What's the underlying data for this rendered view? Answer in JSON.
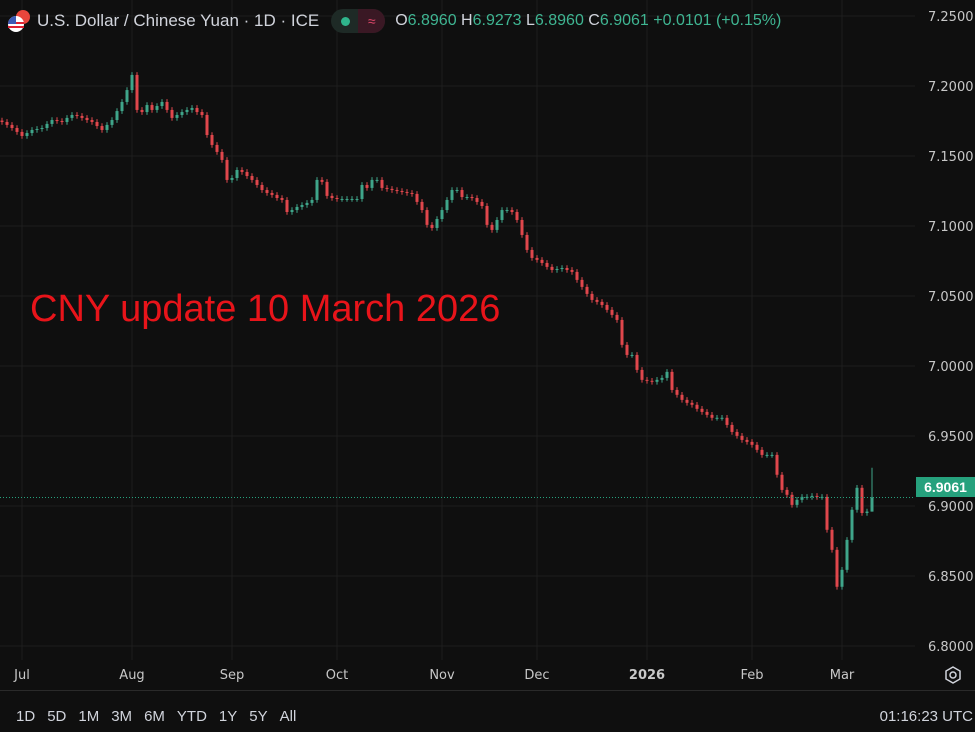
{
  "header": {
    "title": "U.S. Dollar / Chinese Yuan · 1D · ICE",
    "flag_icon": "us-cn-flag-icon",
    "status_pill": {
      "market_open_icon": "green-dot-icon",
      "delayed_icon": "approx-icon",
      "delayed_glyph": "≈"
    },
    "ohlc": {
      "o_label": "O",
      "o": "6.8960",
      "h_label": "H",
      "h": "6.9273",
      "l_label": "L",
      "l": "6.8960",
      "c_label": "C",
      "c": "6.9061",
      "change": "+0.0101 (+0.15%)"
    }
  },
  "annotation": "CNY update 10 March 2026",
  "last_price_label": "6.9061",
  "bottom_bar": {
    "ranges": [
      "1D",
      "5D",
      "1M",
      "3M",
      "6M",
      "YTD",
      "1Y",
      "5Y",
      "All"
    ],
    "clock": "01:16:23 UTC",
    "settings_icon": "gear-icon"
  },
  "colors": {
    "up": "#3fa58a",
    "down": "#e0474c",
    "background": "#0f0f0f",
    "annotation": "#e8141a",
    "last_price": "#26a17d"
  },
  "chart_data": {
    "type": "candlestick",
    "title": "U.S. Dollar / Chinese Yuan · 1D · ICE",
    "interval": "1D",
    "ylim": [
      6.78,
      7.26
    ],
    "y_ticks": [
      "7.2500",
      "7.2000",
      "7.1500",
      "7.1000",
      "7.0500",
      "7.0000",
      "6.9500",
      "6.9000",
      "6.8500",
      "6.8000"
    ],
    "x_ticks": [
      {
        "label": "Jul",
        "at_index": 4
      },
      {
        "label": "Aug",
        "at_index": 26
      },
      {
        "label": "Sep",
        "at_index": 46
      },
      {
        "label": "Oct",
        "at_index": 67
      },
      {
        "label": "Nov",
        "at_index": 88
      },
      {
        "label": "Dec",
        "at_index": 107
      },
      {
        "label": "2026",
        "at_index": 129
      },
      {
        "label": "Feb",
        "at_index": 150
      },
      {
        "label": "Mar",
        "at_index": 168
      }
    ],
    "grid": true,
    "last_price": 6.9061,
    "last_candle": {
      "open": 6.896,
      "high": 6.9273,
      "low": 6.896,
      "close": 6.9061
    },
    "closes": [
      7.1743,
      7.1722,
      7.17,
      7.1672,
      7.1643,
      7.1664,
      7.1686,
      7.1693,
      7.17,
      7.1729,
      7.1757,
      7.175,
      7.1743,
      7.1772,
      7.1793,
      7.1786,
      7.1772,
      7.1757,
      7.1743,
      7.1714,
      7.1686,
      7.1722,
      7.1757,
      7.1821,
      7.1886,
      7.1971,
      7.2079,
      7.1829,
      7.1814,
      7.1864,
      7.1829,
      7.1857,
      7.1886,
      7.1829,
      7.1772,
      7.1793,
      7.1814,
      7.1829,
      7.1843,
      7.1814,
      7.1793,
      7.165,
      7.1579,
      7.1529,
      7.1472,
      7.1329,
      7.1343,
      7.14,
      7.1386,
      7.1357,
      7.1329,
      7.1293,
      7.1257,
      7.1236,
      7.1222,
      7.12,
      7.1186,
      7.11,
      7.1114,
      7.1136,
      7.115,
      7.1165,
      7.1186,
      7.1329,
      7.1315,
      7.1215,
      7.12,
      7.1193,
      7.1193,
      7.1193,
      7.1193,
      7.1193,
      7.1293,
      7.1272,
      7.1329,
      7.1329,
      7.1272,
      7.1265,
      7.1257,
      7.125,
      7.1243,
      7.1236,
      7.1229,
      7.1172,
      7.1114,
      7.1008,
      7.0986,
      7.105,
      7.1114,
      7.1186,
      7.1257,
      7.1257,
      7.1207,
      7.1207,
      7.12,
      7.1172,
      7.1143,
      7.1008,
      7.0972,
      7.1043,
      7.1114,
      7.1114,
      7.11,
      7.1043,
      7.0936,
      7.0829,
      7.0772,
      7.0758,
      7.0736,
      7.0708,
      7.0686,
      7.0693,
      7.07,
      7.0686,
      7.0672,
      7.0615,
      7.0565,
      7.0515,
      7.0472,
      7.0458,
      7.0436,
      7.0401,
      7.0365,
      7.0329,
      7.0151,
      7.0079,
      7.0079,
      6.9972,
      6.9901,
      6.9894,
      6.9887,
      6.9901,
      6.9915,
      6.9958,
      6.9829,
      6.9794,
      6.9758,
      6.9737,
      6.9723,
      6.9694,
      6.9672,
      6.9651,
      6.963,
      6.963,
      6.963,
      6.9579,
      6.9529,
      6.9501,
      6.9472,
      6.9458,
      6.9437,
      6.9401,
      6.9365,
      6.9365,
      6.9365,
      6.9223,
      6.9115,
      6.908,
      6.9008,
      6.9044,
      6.9065,
      6.9065,
      6.9072,
      6.9065,
      6.9065,
      6.883,
      6.8687,
      6.8423,
      6.8544,
      6.8758,
      6.8973,
      6.913,
      6.895,
      6.896,
      6.9061
    ]
  }
}
